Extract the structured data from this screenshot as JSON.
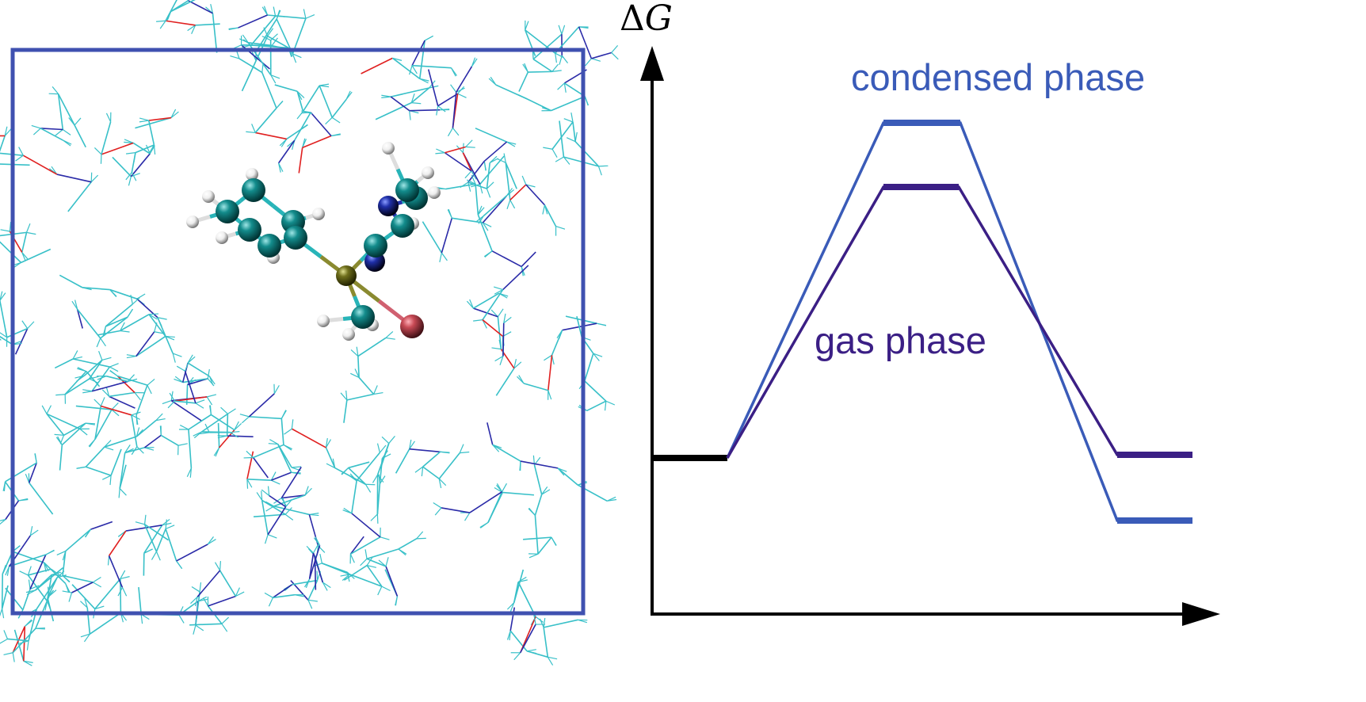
{
  "diagram": {
    "y_axis_label_delta": "Δ",
    "y_axis_label_var": "G",
    "condensed_label": "condensed phase",
    "gas_label": "gas phase",
    "colors": {
      "condensed": "#3a5bb8",
      "gas": "#3b1f85",
      "reactant": "#000000",
      "box": "#3f51b0",
      "solvent_c": "#38c0c8",
      "solvent_n": "#2b2ba8",
      "solvent_o": "#e02020",
      "carbon": "#138c8c",
      "nitrogen": "#1f2fa8",
      "hydrogen": "#f2f2f2",
      "sulfur": "#7a7a20",
      "bromine": "#c84a55"
    },
    "profile": {
      "levels": [
        "reactant",
        "transition state",
        "product"
      ],
      "condensed_relative": [
        0,
        1.0,
        -0.18
      ],
      "gas_relative": [
        0,
        0.79,
        0.01
      ]
    }
  }
}
